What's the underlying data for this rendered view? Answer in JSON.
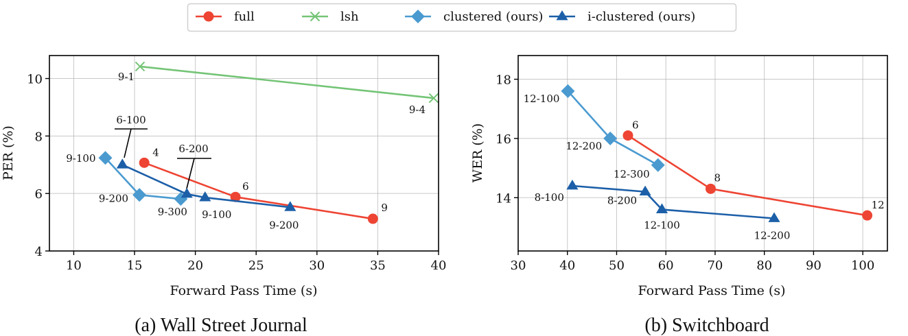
{
  "legend": {
    "entries": [
      {
        "name": "full",
        "color": "#ee4433",
        "marker": "circle"
      },
      {
        "name": "lsh",
        "color": "#74c476",
        "marker": "x"
      },
      {
        "name": "clustered (ours)",
        "color": "#4a9ad0",
        "marker": "diamond"
      },
      {
        "name": "i-clustered (ours)",
        "color": "#1c5fa8",
        "marker": "triangle"
      }
    ],
    "placement": "top-center"
  },
  "chart_data": [
    {
      "type": "line",
      "caption": "(a) Wall Street Journal",
      "xlabel": "Forward Pass Time (s)",
      "ylabel": "PER (%)",
      "xlim": [
        8,
        40
      ],
      "ylim": [
        4,
        10.8
      ],
      "xticks": [
        10,
        15,
        20,
        25,
        30,
        35,
        40
      ],
      "yticks": [
        4,
        6,
        8,
        10
      ],
      "grid": true,
      "series": [
        {
          "name": "full",
          "points": [
            {
              "x": 15.8,
              "y": 7.07,
              "label": "4"
            },
            {
              "x": 23.3,
              "y": 5.88,
              "label": "6"
            },
            {
              "x": 34.6,
              "y": 5.12,
              "label": "9"
            }
          ]
        },
        {
          "name": "lsh",
          "points": [
            {
              "x": 15.45,
              "y": 10.42,
              "label": "9-1"
            },
            {
              "x": 39.6,
              "y": 9.32,
              "label": "9-4"
            }
          ]
        },
        {
          "name": "clustered (ours)",
          "points": [
            {
              "x": 12.6,
              "y": 7.24,
              "label": "9-100"
            },
            {
              "x": 15.4,
              "y": 5.95,
              "label": "9-200"
            },
            {
              "x": 18.8,
              "y": 5.81,
              "label": "9-300"
            }
          ]
        },
        {
          "name": "i-clustered (ours)",
          "points": [
            {
              "x": 14.0,
              "y": 7.0,
              "label": "6-100"
            },
            {
              "x": 19.3,
              "y": 5.98,
              "label": "6-200"
            },
            {
              "x": 20.8,
              "y": 5.86,
              "label": "9-100"
            },
            {
              "x": 27.8,
              "y": 5.52,
              "label": "9-200"
            }
          ]
        }
      ]
    },
    {
      "type": "line",
      "caption": "(b) Switchboard",
      "xlabel": "Forward Pass Time (s)",
      "ylabel": "WER (%)",
      "xlim": [
        30,
        105
      ],
      "ylim": [
        12.2,
        18.8
      ],
      "xticks": [
        30,
        40,
        50,
        60,
        70,
        80,
        90,
        100
      ],
      "yticks": [
        14,
        16,
        18
      ],
      "grid": true,
      "series": [
        {
          "name": "full",
          "points": [
            {
              "x": 52.3,
              "y": 16.1,
              "label": "6"
            },
            {
              "x": 69.1,
              "y": 14.3,
              "label": "8"
            },
            {
              "x": 100.9,
              "y": 13.4,
              "label": "12"
            }
          ]
        },
        {
          "name": "clustered (ours)",
          "points": [
            {
              "x": 40.1,
              "y": 17.6,
              "label": "12-100"
            },
            {
              "x": 48.7,
              "y": 16.0,
              "label": "12-200"
            },
            {
              "x": 58.4,
              "y": 15.1,
              "label": "12-300"
            }
          ]
        },
        {
          "name": "i-clustered (ours)",
          "points": [
            {
              "x": 41.0,
              "y": 14.4,
              "label": "8-100"
            },
            {
              "x": 55.8,
              "y": 14.2,
              "label": "8-200"
            },
            {
              "x": 59.2,
              "y": 13.6,
              "label": "12-100"
            },
            {
              "x": 82.0,
              "y": 13.3,
              "label": "12-200"
            }
          ]
        }
      ]
    }
  ]
}
